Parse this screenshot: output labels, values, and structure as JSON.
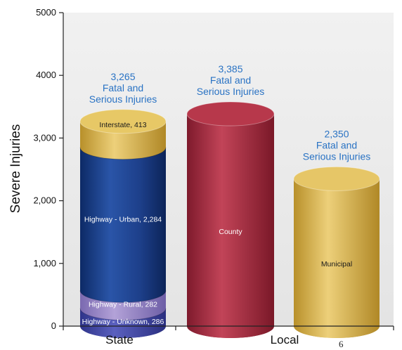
{
  "chart_data": {
    "type": "bar",
    "style": "3d-cylinder-stacked",
    "ylabel": "Severe Injuries",
    "ylim": [
      0,
      5000
    ],
    "y_ticks": [
      {
        "value": 0,
        "label": "0"
      },
      {
        "value": 1000,
        "label": "1,000"
      },
      {
        "value": 2000,
        "label": "2,000"
      },
      {
        "value": 3000,
        "label": "3,000"
      },
      {
        "value": 4000,
        "label": "4000"
      },
      {
        "value": 5000,
        "label": "5000"
      }
    ],
    "groups": [
      "State",
      "Local"
    ],
    "bars": [
      {
        "name": "State",
        "total": 3265,
        "total_lines": [
          "3,265",
          "Fatal and",
          "Serious Injuries"
        ],
        "segments": [
          {
            "label": "Highway - Unknown, 286",
            "value": 286,
            "color": "#4a4fa8"
          },
          {
            "label": "Highway - Rural, 282",
            "value": 282,
            "color": "#9b86c8"
          },
          {
            "label": "Highway - Urban, 2,284",
            "value": 2284,
            "color": "#1d3f8a"
          },
          {
            "label": "Interstate, 413",
            "value": 413,
            "color": "#d8b44a"
          }
        ]
      },
      {
        "name": "County",
        "total": 3385,
        "total_lines": [
          "3,385",
          "Fatal and",
          "Serious Injuries"
        ],
        "segments": [
          {
            "label": "County",
            "value": 3385,
            "color": "#a52c3f"
          }
        ]
      },
      {
        "name": "Municipal",
        "total": 2350,
        "total_lines": [
          "2,350",
          "Fatal and",
          "Serious Injuries"
        ],
        "segments": [
          {
            "label": "Municipal",
            "value": 2350,
            "color": "#d8b04e"
          }
        ]
      }
    ],
    "grid": false,
    "legend": "none"
  },
  "page_number": "6"
}
